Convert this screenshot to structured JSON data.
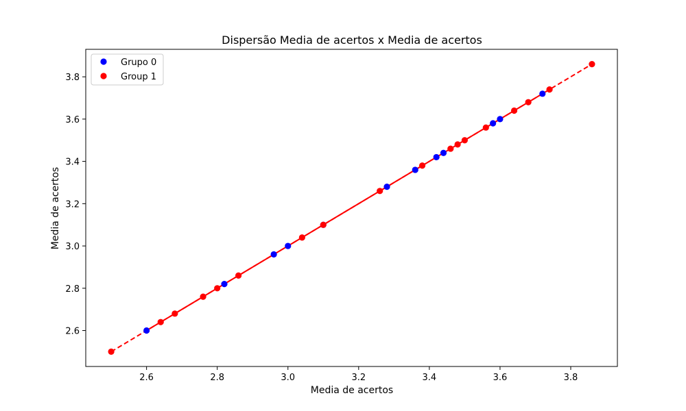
{
  "chart_data": {
    "type": "scatter",
    "title": "Dispersão Media de acertos x Media de acertos",
    "xlabel": "Media de acertos",
    "ylabel": "Media de acertos",
    "xlim": [
      2.428,
      3.932
    ],
    "ylim": [
      2.43,
      3.93
    ],
    "xticks": [
      "2.6",
      "2.8",
      "3.0",
      "3.2",
      "3.4",
      "3.6",
      "3.8"
    ],
    "yticks": [
      "2.6",
      "2.8",
      "3.0",
      "3.2",
      "3.4",
      "3.6",
      "3.8"
    ],
    "grid": false,
    "legend": "upper-left",
    "series": [
      {
        "name": "Grupo 0",
        "color": "#0000ff",
        "trendline_style": "solid",
        "points": [
          [
            2.6,
            2.6
          ],
          [
            2.82,
            2.82
          ],
          [
            2.96,
            2.96
          ],
          [
            3.0,
            3.0
          ],
          [
            3.1,
            3.1
          ],
          [
            3.28,
            3.28
          ],
          [
            3.36,
            3.36
          ],
          [
            3.42,
            3.42
          ],
          [
            3.44,
            3.44
          ],
          [
            3.58,
            3.58
          ],
          [
            3.6,
            3.6
          ],
          [
            3.72,
            3.72
          ]
        ]
      },
      {
        "name": "Group 1",
        "color": "#ff0000",
        "trendline_style": "dashed",
        "points": [
          [
            2.5,
            2.5
          ],
          [
            2.64,
            2.64
          ],
          [
            2.68,
            2.68
          ],
          [
            2.76,
            2.76
          ],
          [
            2.8,
            2.8
          ],
          [
            2.86,
            2.86
          ],
          [
            3.04,
            3.04
          ],
          [
            3.1,
            3.1
          ],
          [
            3.26,
            3.26
          ],
          [
            3.38,
            3.38
          ],
          [
            3.46,
            3.46
          ],
          [
            3.48,
            3.48
          ],
          [
            3.5,
            3.5
          ],
          [
            3.56,
            3.56
          ],
          [
            3.64,
            3.64
          ],
          [
            3.68,
            3.68
          ],
          [
            3.74,
            3.74
          ],
          [
            3.86,
            3.86
          ]
        ]
      }
    ],
    "trendline_color": "#ff0000"
  }
}
